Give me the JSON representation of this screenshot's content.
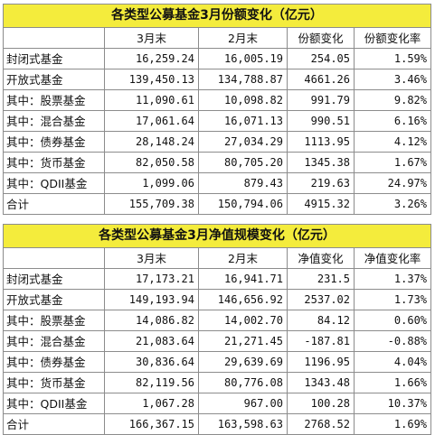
{
  "table1": {
    "title": "各类型公募基金3月份额变化（亿元）",
    "headers": [
      "",
      "3月末",
      "2月末",
      "份额变化",
      "份额变化率"
    ],
    "rows": [
      [
        "封闭式基金",
        "16,259.24",
        "16,005.19",
        "254.05",
        "1.59%"
      ],
      [
        "开放式基金",
        "139,450.13",
        "134,788.87",
        "4661.26",
        "3.46%"
      ],
      [
        "其中：股票基金",
        "11,090.61",
        "10,098.82",
        "991.79",
        "9.82%"
      ],
      [
        "其中：混合基金",
        "17,061.64",
        "16,071.13",
        "990.51",
        "6.16%"
      ],
      [
        "其中：债券基金",
        "28,148.24",
        "27,034.29",
        "1113.95",
        "4.12%"
      ],
      [
        "其中：货币基金",
        "82,050.58",
        "80,705.20",
        "1345.38",
        "1.67%"
      ],
      [
        "其中：QDII基金",
        "1,099.06",
        "879.43",
        "219.63",
        "24.97%"
      ],
      [
        "合计",
        "155,709.38",
        "150,794.06",
        "4915.32",
        "3.26%"
      ]
    ]
  },
  "table2": {
    "title": "各类型公募基金3月净值规模变化（亿元）",
    "headers": [
      "",
      "3月末",
      "2月末",
      "净值变化",
      "净值变化率"
    ],
    "rows": [
      [
        "封闭式基金",
        "17,173.21",
        "16,941.71",
        "231.5",
        "1.37%"
      ],
      [
        "开放式基金",
        "149,193.94",
        "146,656.92",
        "2537.02",
        "1.73%"
      ],
      [
        "其中：股票基金",
        "14,086.82",
        "14,002.70",
        "84.12",
        "0.60%"
      ],
      [
        "其中：混合基金",
        "21,083.64",
        "21,271.45",
        "-187.81",
        "-0.88%"
      ],
      [
        "其中：债券基金",
        "30,836.64",
        "29,639.69",
        "1196.95",
        "4.04%"
      ],
      [
        "其中：货币基金",
        "82,119.56",
        "80,776.08",
        "1343.48",
        "1.66%"
      ],
      [
        "其中：QDII基金",
        "1,067.28",
        "967.00",
        "100.28",
        "10.37%"
      ],
      [
        "合计",
        "166,367.15",
        "163,598.63",
        "2768.52",
        "1.69%"
      ]
    ]
  },
  "colors": {
    "title_bg": "#f4ec3c",
    "border": "#8c8c8c",
    "text": "#111111"
  }
}
